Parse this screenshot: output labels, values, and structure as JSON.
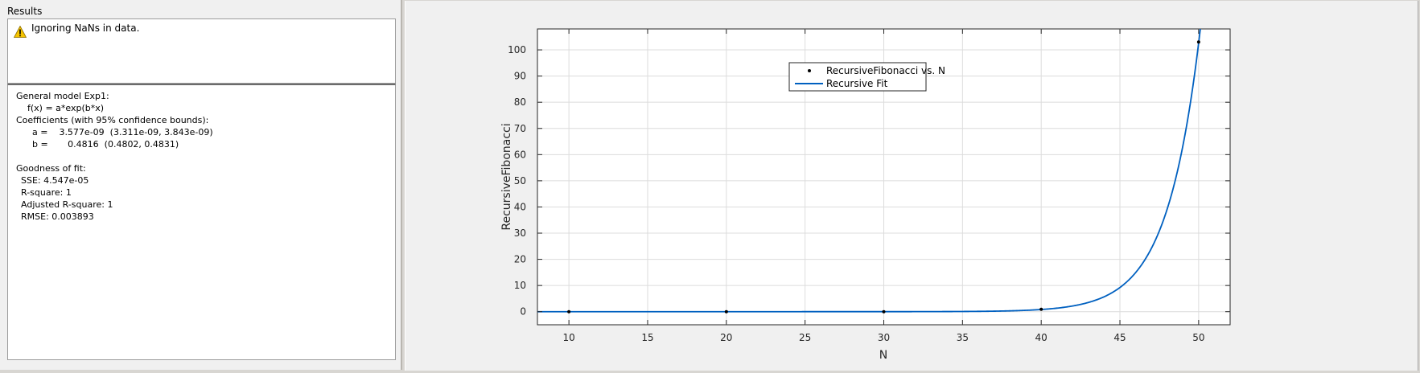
{
  "panel_title": "Results",
  "warning": {
    "icon": "warning-icon",
    "text": "Ignoring NaNs in data."
  },
  "results": {
    "model_title": "General model Exp1:",
    "model_equation": "f(x) = a*exp(b*x)",
    "coefficients_header": "Coefficients (with 95% confidence bounds):",
    "coef_a": "a =    3.577e-09  (3.311e-09, 3.843e-09)",
    "coef_b": "b =       0.4816  (0.4802, 0.4831)",
    "gof_header": "Goodness of fit:",
    "sse": "SSE: 4.547e-05",
    "rsquare": "R-square: 1",
    "adj_rsquare": "Adjusted R-square: 1",
    "rmse": "RMSE: 0.003893"
  },
  "chart_data": {
    "type": "scatter",
    "xlabel": "N",
    "ylabel": "RecursiveFibonacci",
    "xlim": [
      8,
      52
    ],
    "ylim": [
      -5,
      108
    ],
    "xticks": [
      10,
      15,
      20,
      25,
      30,
      35,
      40,
      45,
      50
    ],
    "yticks": [
      0,
      10,
      20,
      30,
      40,
      50,
      60,
      70,
      80,
      90,
      100
    ],
    "grid": true,
    "legend_position": "top-center",
    "legend": [
      "RecursiveFibonacci vs. N",
      "Recursive Fit"
    ],
    "series": [
      {
        "name": "RecursiveFibonacci vs. N",
        "kind": "points",
        "x": [
          10,
          20,
          30,
          40,
          50
        ],
        "y": [
          0,
          0,
          0,
          0.9,
          103
        ]
      },
      {
        "name": "Recursive Fit",
        "kind": "line",
        "model": "a*exp(b*x)",
        "a": 3.577e-09,
        "b": 0.4816,
        "color": "#0060c0"
      }
    ]
  }
}
